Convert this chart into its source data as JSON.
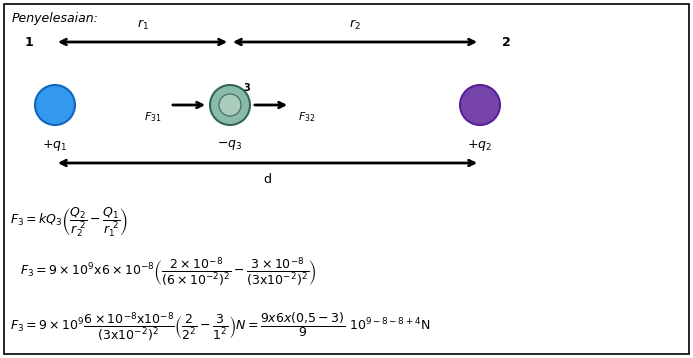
{
  "title": "Penyelesaian:",
  "background_color": "#ffffff",
  "border_color": "#000000",
  "fig_width": 6.93,
  "fig_height": 3.58,
  "dpi": 100,
  "charge1_color": "#3399ee",
  "charge2_color": "#7744aa",
  "charge3_outer_color": "#88bbaa",
  "charge3_inner_color": "#aaccbb"
}
